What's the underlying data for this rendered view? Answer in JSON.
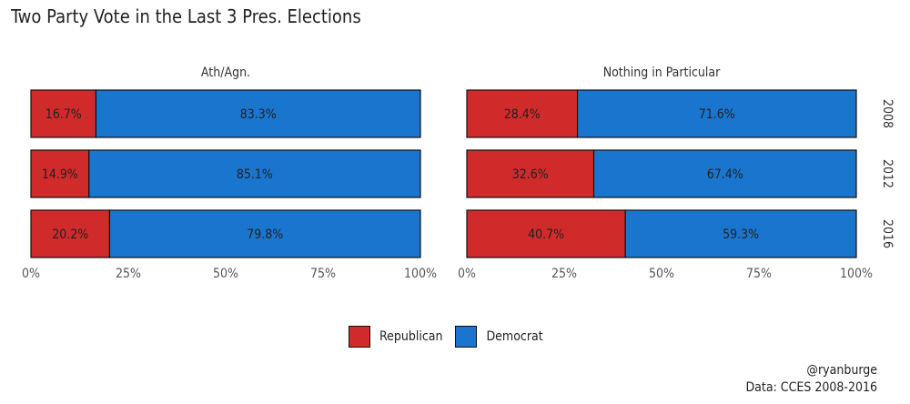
{
  "title": "Two Party Vote in the Last 3 Pres. Elections",
  "colors": {
    "Republican": "#d12a2a",
    "Democrat": "#1a75cf"
  },
  "legend": [
    {
      "label": "Republican",
      "color": "#d12a2a"
    },
    {
      "label": "Democrat",
      "color": "#1a75cf"
    }
  ],
  "credit": {
    "handle": "@ryanburge",
    "source": "Data: CCES 2008-2016"
  },
  "chart_data": {
    "type": "bar",
    "orientation": "horizontal",
    "stacked": true,
    "title": "Two Party Vote in the Last 3 Pres. Elections",
    "xlim": [
      0,
      100
    ],
    "x_ticks": [
      "0%",
      "25%",
      "50%",
      "75%",
      "100%"
    ],
    "row_facets": [
      "2008",
      "2012",
      "2016"
    ],
    "series_names": [
      "Republican",
      "Democrat"
    ],
    "legend_position": "bottom",
    "grid": false,
    "panels": [
      {
        "facet": "Ath/Agn.",
        "bars": [
          {
            "year": "2008",
            "Republican": 16.7,
            "Democrat": 83.3,
            "labels": [
              "16.7%",
              "83.3%"
            ]
          },
          {
            "year": "2012",
            "Republican": 14.9,
            "Democrat": 85.1,
            "labels": [
              "14.9%",
              "85.1%"
            ]
          },
          {
            "year": "2016",
            "Republican": 20.2,
            "Democrat": 79.8,
            "labels": [
              "20.2%",
              "79.8%"
            ]
          }
        ]
      },
      {
        "facet": "Nothing in Particular",
        "bars": [
          {
            "year": "2008",
            "Republican": 28.4,
            "Democrat": 71.6,
            "labels": [
              "28.4%",
              "71.6%"
            ]
          },
          {
            "year": "2012",
            "Republican": 32.6,
            "Democrat": 67.4,
            "labels": [
              "32.6%",
              "67.4%"
            ]
          },
          {
            "year": "2016",
            "Republican": 40.7,
            "Democrat": 59.3,
            "labels": [
              "40.7%",
              "59.3%"
            ]
          }
        ]
      }
    ]
  }
}
